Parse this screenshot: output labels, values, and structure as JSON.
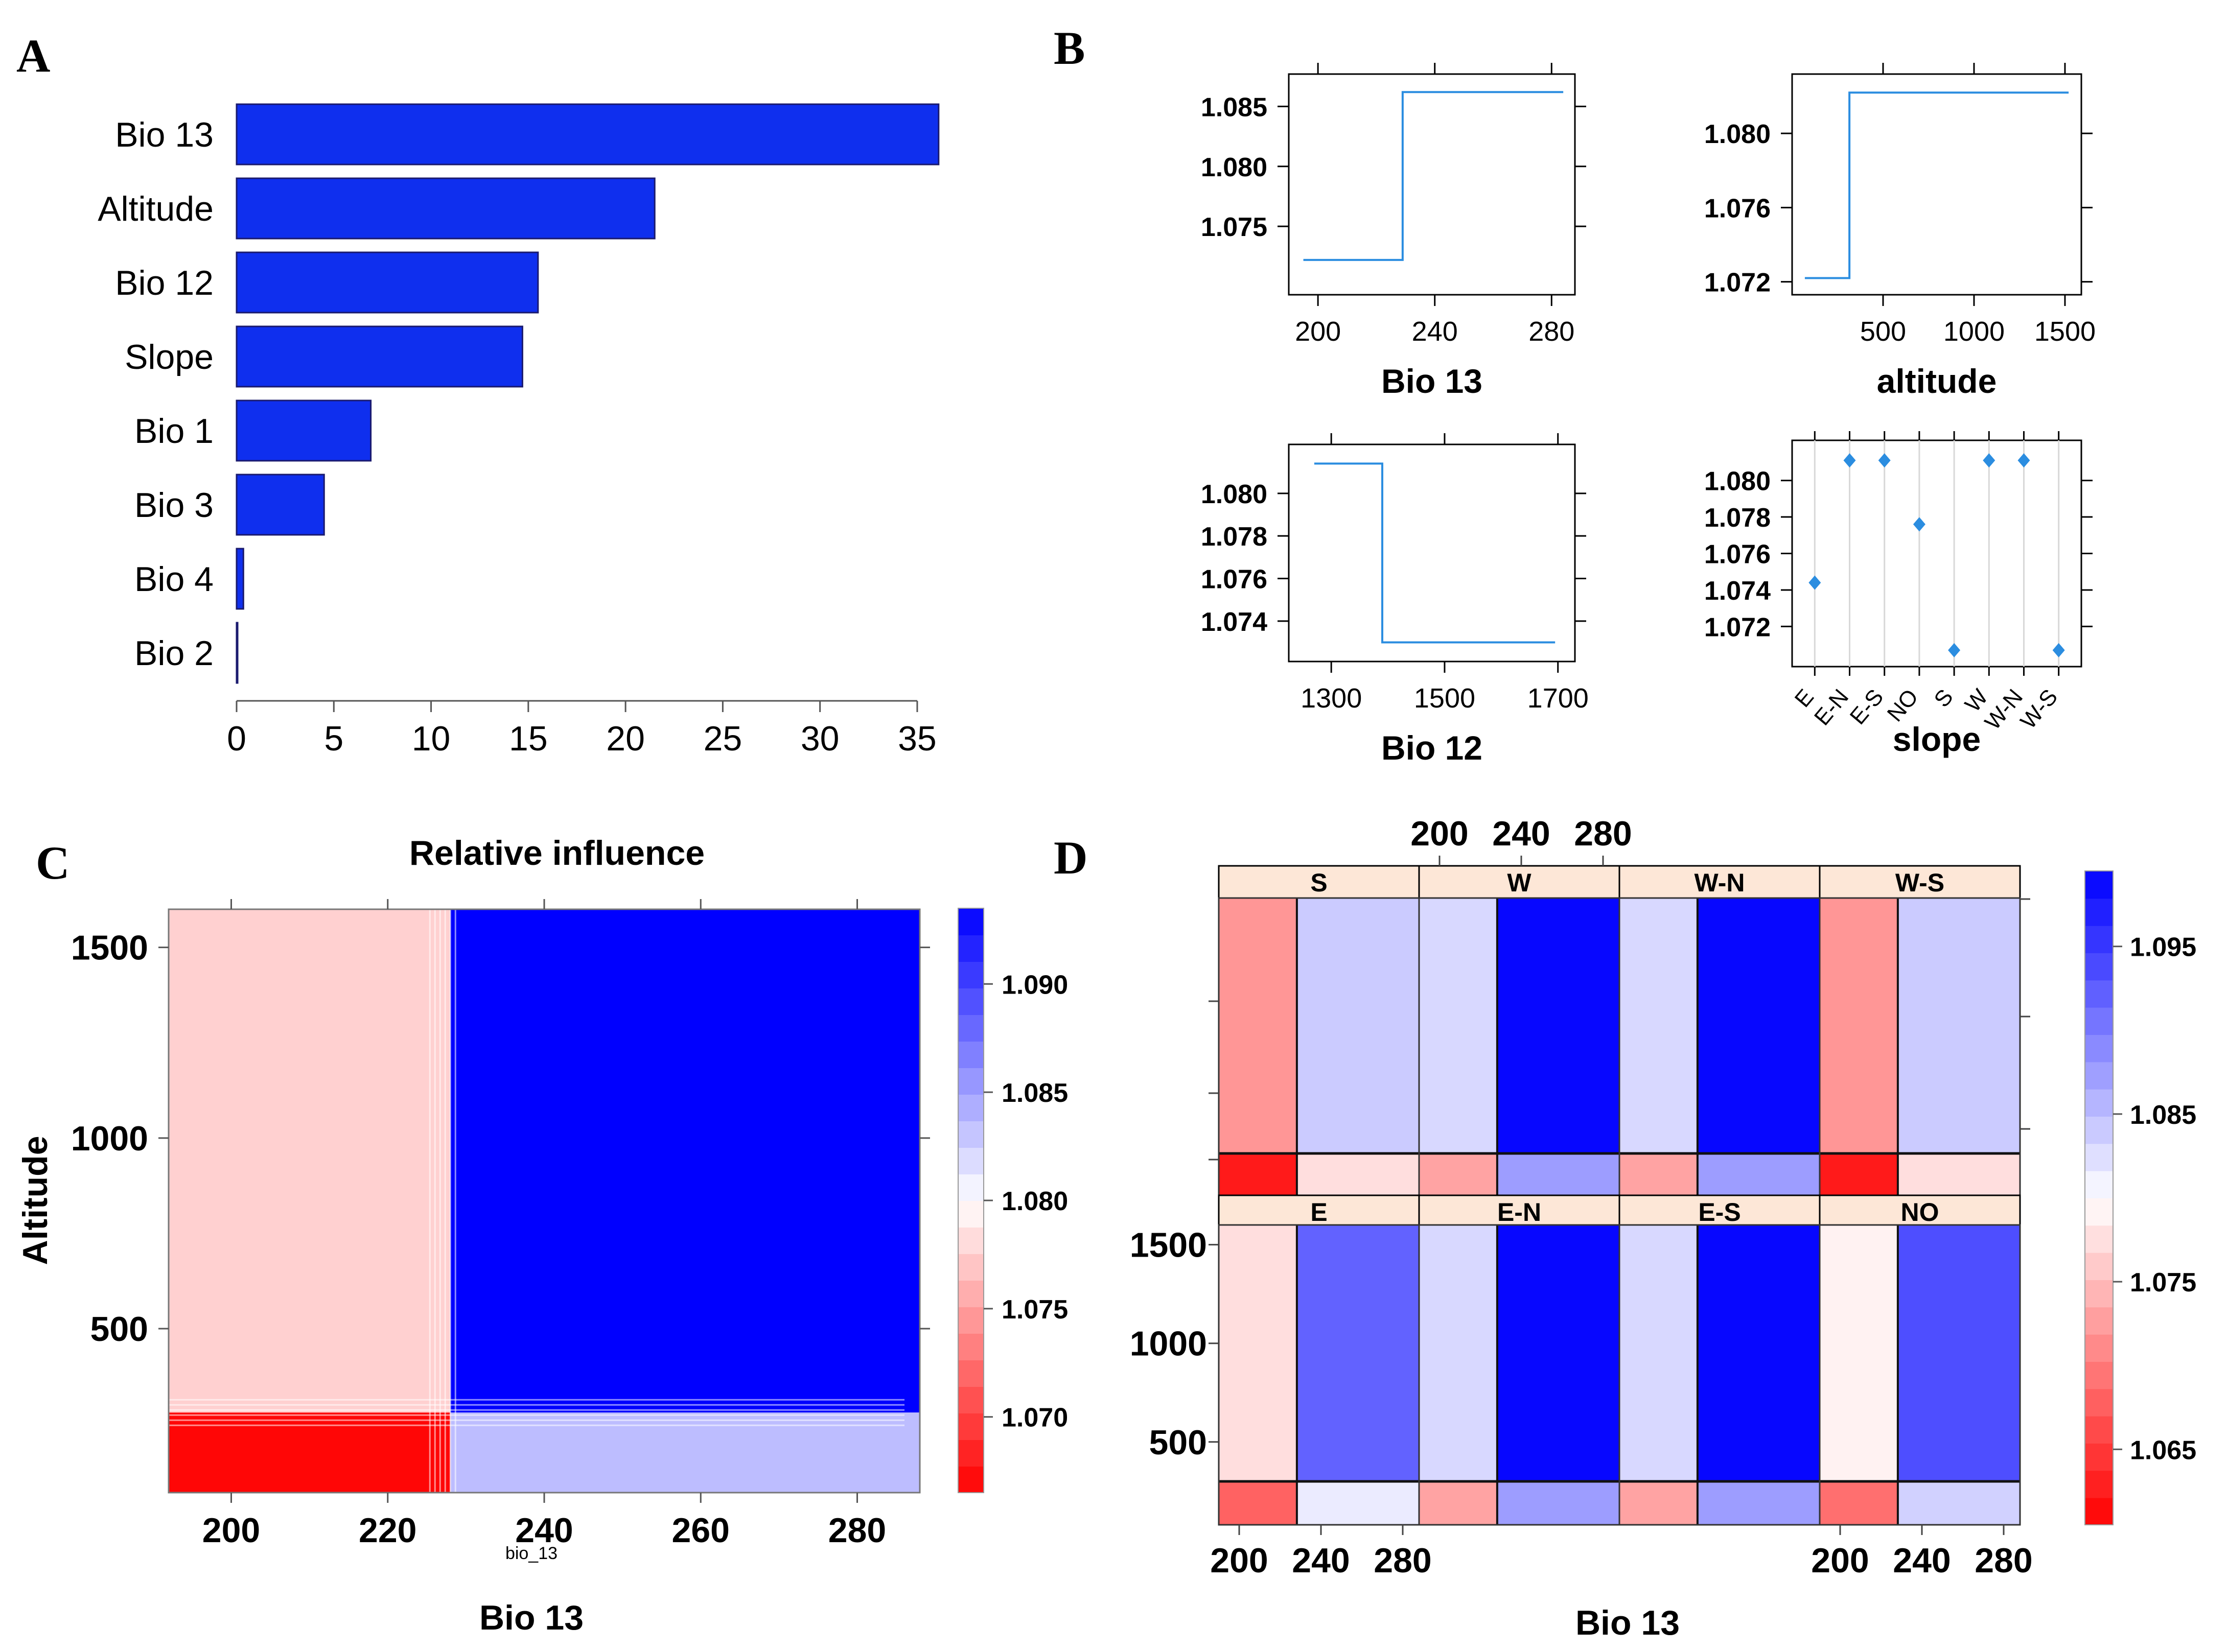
{
  "panel_labels": {
    "a": "A",
    "b": "B",
    "c": "C",
    "d": "D"
  },
  "colors": {
    "bar": "#0f2fee",
    "line": "#2b8de0",
    "red": "#ff0000",
    "blue": "#0000ff"
  },
  "chart_data": [
    {
      "id": "A",
      "type": "bar",
      "orientation": "horizontal",
      "categories": [
        "Bio 13",
        "Altitude",
        "Bio 12",
        "Slope",
        "Bio 1",
        "Bio 3",
        "Bio 4",
        "Bio 2"
      ],
      "values": [
        36.1,
        21.5,
        15.5,
        14.7,
        6.9,
        4.5,
        0.35,
        0.05
      ],
      "xlim": [
        0,
        36
      ],
      "xticks": [
        "0",
        "5",
        "10",
        "15",
        "20",
        "25",
        "30",
        "35"
      ]
    },
    {
      "id": "B1",
      "type": "line",
      "xlabel": "Bio 13",
      "x": [
        195,
        229,
        229,
        284
      ],
      "y": [
        1.0722,
        1.0722,
        1.0862,
        1.0862
      ],
      "xlim": [
        190,
        288
      ],
      "ylim": [
        1.0693,
        1.0877
      ],
      "xticks": [
        "200",
        "240",
        "280"
      ],
      "yticks": [
        "1.075",
        "1.080",
        "1.085"
      ]
    },
    {
      "id": "B2",
      "type": "line",
      "xlabel": "altitude",
      "x": [
        70,
        315,
        315,
        1520
      ],
      "y": [
        1.0722,
        1.0722,
        1.0822,
        1.0822
      ],
      "xlim": [
        0,
        1590
      ],
      "ylim": [
        1.0713,
        1.0832
      ],
      "xticks": [
        "500",
        "1000",
        "1500"
      ],
      "yticks": [
        "1.072",
        "1.076",
        "1.080"
      ]
    },
    {
      "id": "B3",
      "type": "line",
      "xlabel": "Bio 12",
      "x": [
        1270,
        1390,
        1390,
        1695
      ],
      "y": [
        1.0814,
        1.0814,
        1.073,
        1.073
      ],
      "xlim": [
        1225,
        1730
      ],
      "ylim": [
        1.0721,
        1.0823
      ],
      "xticks": [
        "1300",
        "1500",
        "1700"
      ],
      "yticks": [
        "1.074",
        "1.076",
        "1.078",
        "1.080"
      ]
    },
    {
      "id": "B4",
      "type": "scatter",
      "xlabel": "slope",
      "categories": [
        "E",
        "E-N",
        "E-S",
        "NO",
        "S",
        "W",
        "W-N",
        "W-S"
      ],
      "values": [
        1.0744,
        1.0811,
        1.0811,
        1.0776,
        1.0707,
        1.0811,
        1.0811,
        1.0707
      ],
      "ylim": [
        1.0698,
        1.0822
      ],
      "yticks": [
        "1.072",
        "1.074",
        "1.076",
        "1.078",
        "1.080"
      ]
    },
    {
      "id": "C",
      "type": "heatmap",
      "title": "Relative influence",
      "xlabel": "Bio 13",
      "ylabel": "Altitude",
      "subxlabel": "bio_13",
      "xlim": [
        192,
        288
      ],
      "ylim": [
        70,
        1600
      ],
      "x_split": 228,
      "y_split": 280,
      "cells": [
        {
          "region": "low_bio13_low_alt",
          "value": 1.0668
        },
        {
          "region": "low_bio13_high_alt",
          "value": 1.0775
        },
        {
          "region": "high_bio13_low_alt",
          "value": 1.0835
        },
        {
          "region": "high_bio13_high_alt",
          "value": 1.0935
        }
      ],
      "xticks": [
        "200",
        "220",
        "240",
        "260",
        "280"
      ],
      "yticks": [
        "500",
        "1000",
        "1500"
      ],
      "colorbar": {
        "min": 1.0665,
        "max": 1.0935,
        "ticks": [
          "1.070",
          "1.075",
          "1.080",
          "1.085",
          "1.090"
        ]
      }
    },
    {
      "id": "D",
      "type": "heatmap",
      "xlabel": "Bio 13",
      "panels": [
        {
          "label": "S",
          "cells": [
            1.072,
            1.084,
            1.0625,
            1.0775
          ]
        },
        {
          "label": "W",
          "cells": [
            1.083,
            1.099,
            1.073,
            1.0875
          ]
        },
        {
          "label": "W-N",
          "cells": [
            1.083,
            1.099,
            1.073,
            1.0875
          ]
        },
        {
          "label": "W-S",
          "cells": [
            1.072,
            1.084,
            1.0625,
            1.0775
          ]
        },
        {
          "label": "E",
          "cells": [
            1.0775,
            1.092,
            1.068,
            1.0815
          ]
        },
        {
          "label": "E-N",
          "cells": [
            1.083,
            1.099,
            1.073,
            1.0875
          ]
        },
        {
          "label": "E-S",
          "cells": [
            1.083,
            1.099,
            1.073,
            1.0875
          ]
        },
        {
          "label": "NO",
          "cells": [
            1.079,
            1.0935,
            1.069,
            1.0835
          ]
        }
      ],
      "cell_order": [
        "low_bio13_high_alt",
        "high_bio13_high_alt",
        "low_bio13_low_alt",
        "high_bio13_low_alt"
      ],
      "top_xticks": [
        "200",
        "240",
        "280"
      ],
      "bottom_xticks_left": [
        "200",
        "240",
        "280"
      ],
      "bottom_xticks_right": [
        "200",
        "240",
        "280"
      ],
      "yticks": [
        "500",
        "1000",
        "1500"
      ],
      "colorbar": {
        "min": 1.0605,
        "max": 1.0995,
        "ticks": [
          "1.065",
          "1.075",
          "1.085",
          "1.095"
        ]
      }
    }
  ]
}
